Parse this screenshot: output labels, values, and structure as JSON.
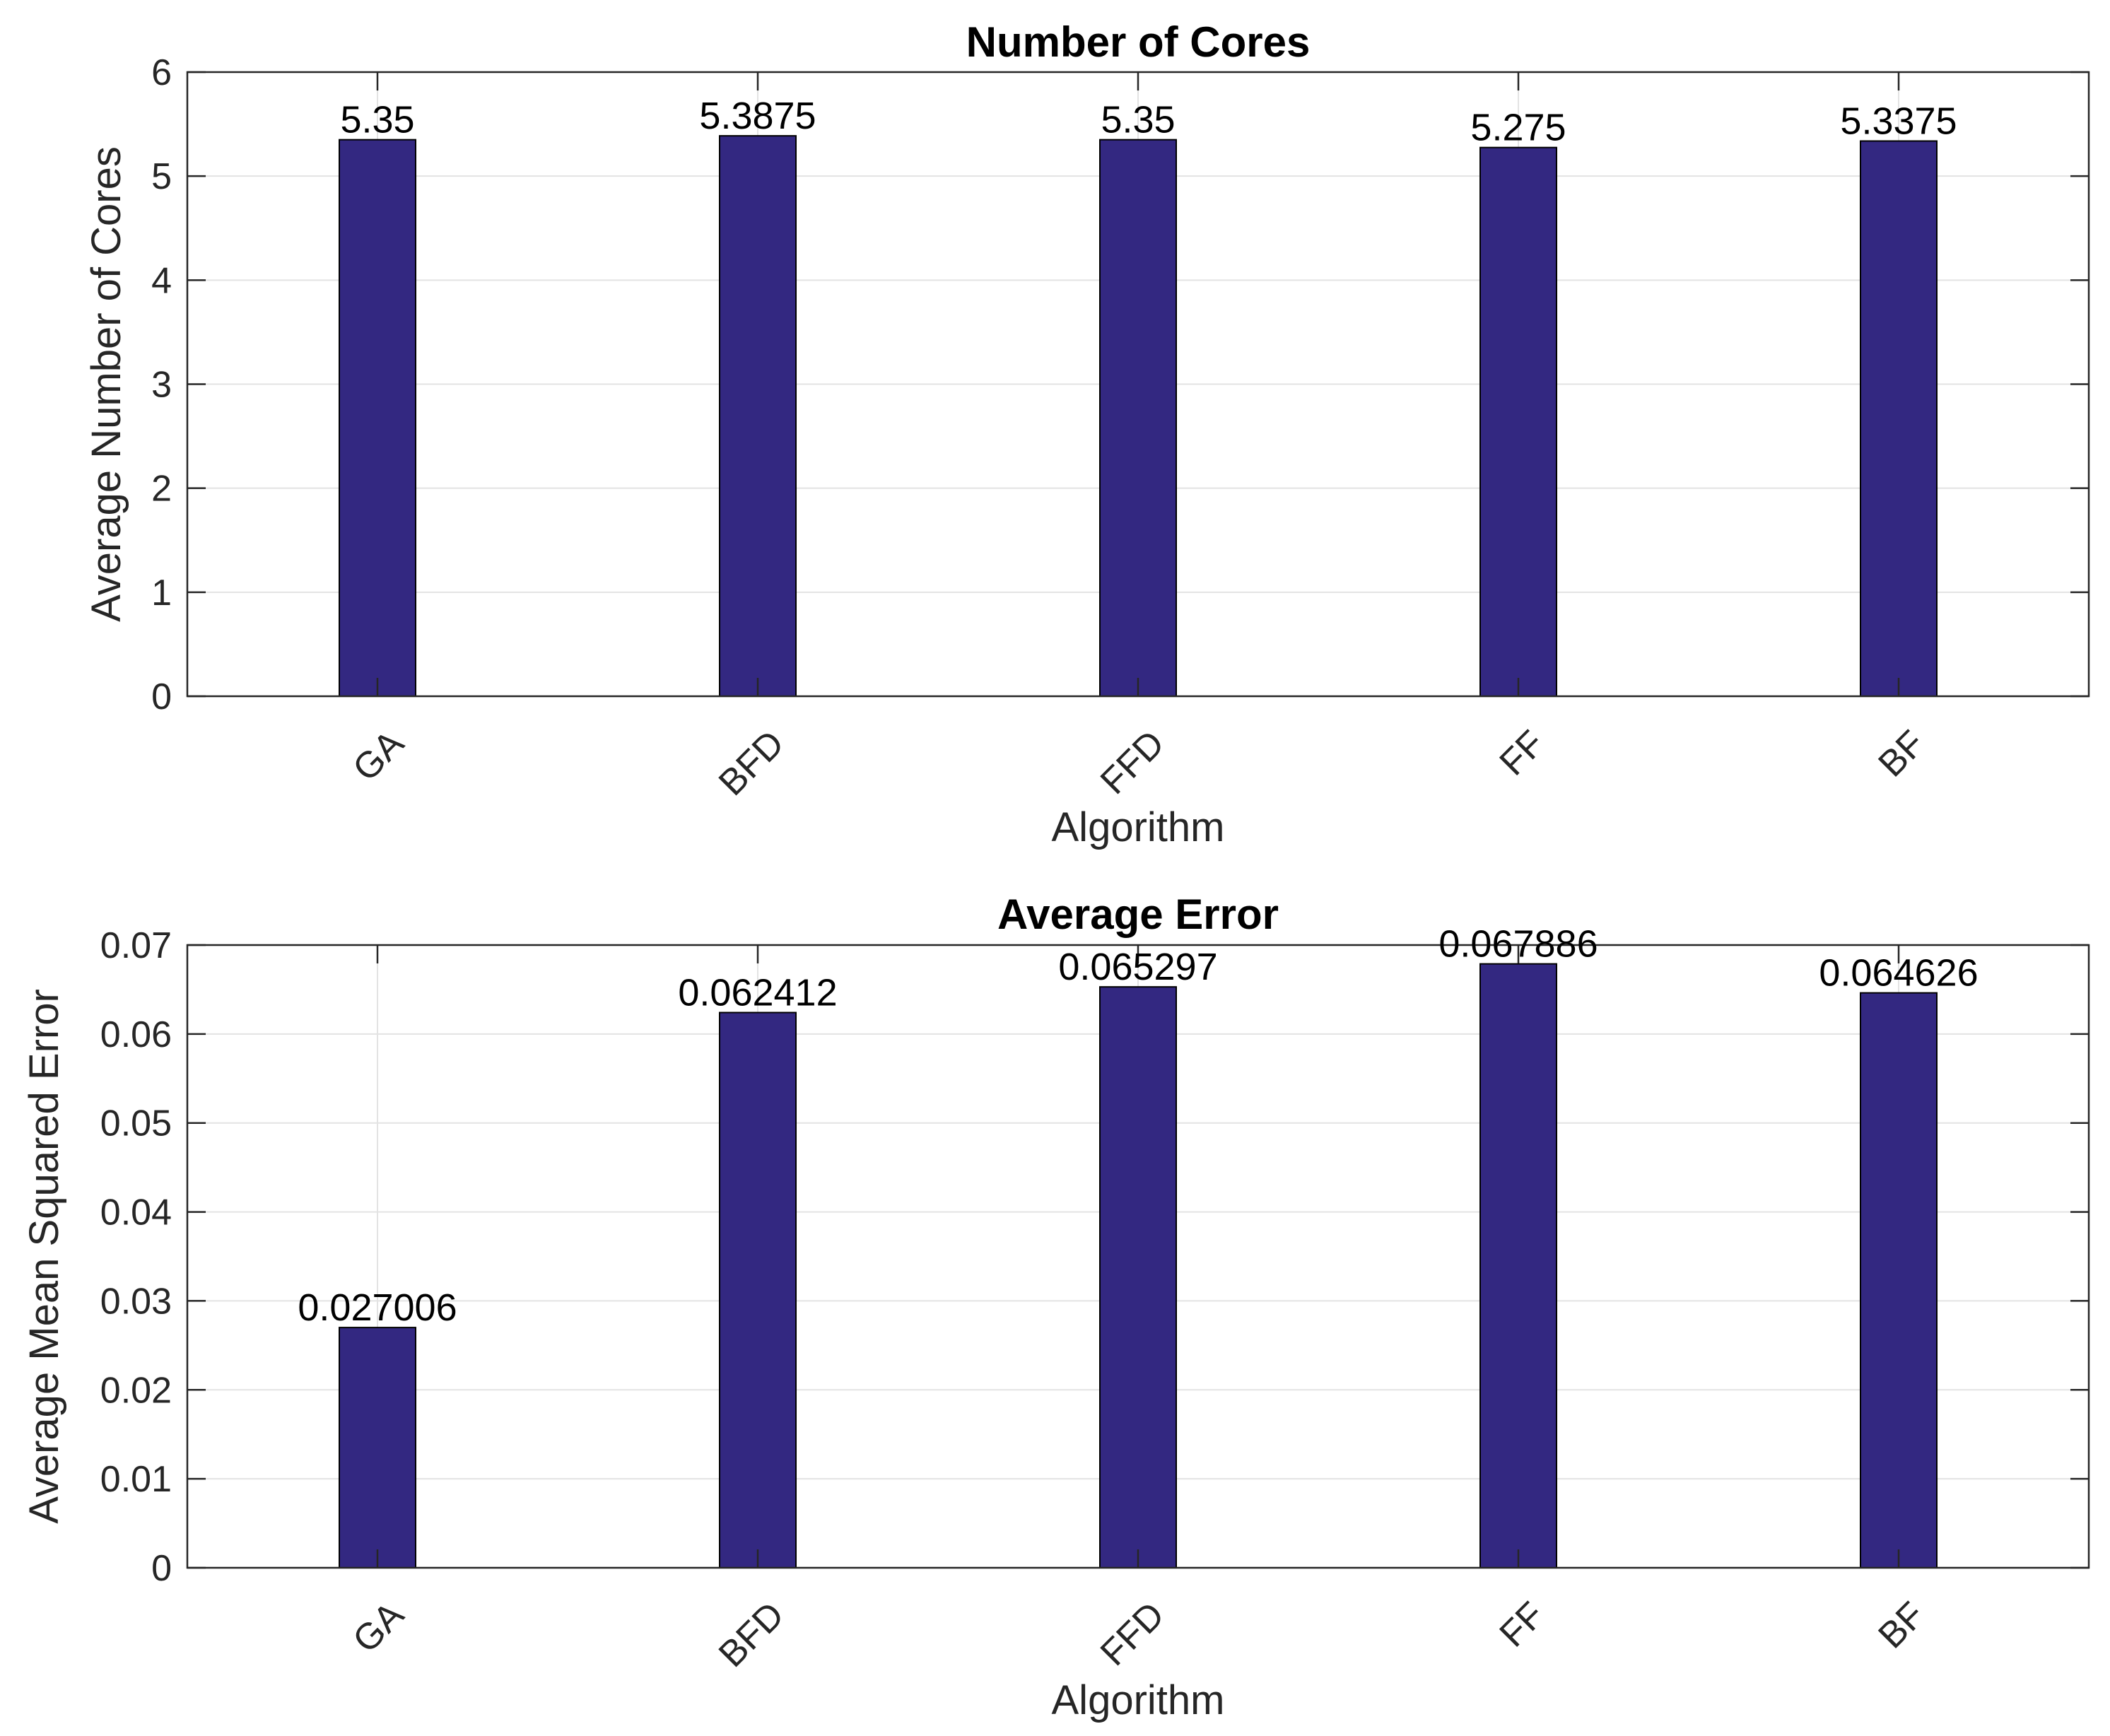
{
  "chart_data": [
    {
      "type": "bar",
      "title": "Number of Cores",
      "xlabel": "Algorithm",
      "ylabel": "Average Number of Cores",
      "categories": [
        "GA",
        "BFD",
        "FFD",
        "FF",
        "BF"
      ],
      "values": [
        5.35,
        5.3875,
        5.35,
        5.275,
        5.3375
      ],
      "value_labels": [
        "5.35",
        "5.3875",
        "5.35",
        "5.275",
        "5.3375"
      ],
      "ylim": [
        0,
        6
      ],
      "yticks": [
        0,
        1,
        2,
        3,
        4,
        5,
        6
      ],
      "ytick_labels": [
        "0",
        "1",
        "2",
        "3",
        "4",
        "5",
        "6"
      ],
      "grid": true,
      "bar_color": "#332881"
    },
    {
      "type": "bar",
      "title": "Average Error",
      "xlabel": "Algorithm",
      "ylabel": "Average Mean Squared Error",
      "categories": [
        "GA",
        "BFD",
        "FFD",
        "FF",
        "BF"
      ],
      "values": [
        0.027006,
        0.062412,
        0.065297,
        0.067886,
        0.064626
      ],
      "value_labels": [
        "0.027006",
        "0.062412",
        "0.065297",
        "0.067886",
        "0.064626"
      ],
      "ylim": [
        0,
        0.07
      ],
      "yticks": [
        0,
        0.01,
        0.02,
        0.03,
        0.04,
        0.05,
        0.06,
        0.07
      ],
      "ytick_labels": [
        "0",
        "0.01",
        "0.02",
        "0.03",
        "0.04",
        "0.05",
        "0.06",
        "0.07"
      ],
      "grid": true,
      "bar_color": "#332881"
    }
  ]
}
